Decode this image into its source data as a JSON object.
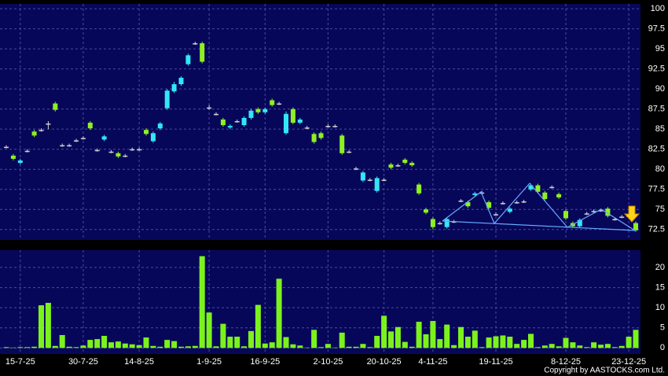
{
  "chart_data": [
    {
      "type": "candlestick",
      "categories": [
        null,
        null,
        "15-7-25",
        null,
        null,
        null,
        null,
        null,
        null,
        null,
        null,
        "30-7-25",
        null,
        null,
        null,
        null,
        null,
        null,
        null,
        "14-8-25",
        null,
        null,
        null,
        null,
        null,
        null,
        null,
        null,
        null,
        "1-9-25",
        null,
        null,
        null,
        null,
        null,
        null,
        null,
        "16-9-25",
        null,
        null,
        null,
        null,
        null,
        null,
        null,
        null,
        "2-10-25",
        null,
        null,
        null,
        null,
        null,
        null,
        null,
        "20-10-25",
        null,
        null,
        null,
        null,
        null,
        null,
        "4-11-25",
        null,
        null,
        null,
        null,
        null,
        null,
        null,
        null,
        "19-11-25",
        null,
        null,
        null,
        null,
        null,
        null,
        null,
        null,
        null,
        "8-12-25",
        null,
        null,
        null,
        null,
        null,
        null,
        null,
        null,
        "23-12-25",
        null
      ],
      "open": [
        82.8,
        81.7,
        80.8,
        82.3,
        84.7,
        84.9,
        85.7,
        88.2,
        83.0,
        83.0,
        83.6,
        83.9,
        85.8,
        82.4,
        83.7,
        82.2,
        82.0,
        81.7,
        82.5,
        82.5,
        84.9,
        83.5,
        85.1,
        87.6,
        89.7,
        90.6,
        93.1,
        95.7,
        95.7,
        87.7,
        86.9,
        86.2,
        85.2,
        86.0,
        85.5,
        86.4,
        87.5,
        87.1,
        88.6,
        88.2,
        84.5,
        87.5,
        85.8,
        85.2,
        84.4,
        84.5,
        85.4,
        85.4,
        84.2,
        82.2,
        80.1,
        78.6,
        78.7,
        77.3,
        78.7,
        80.6,
        80.5,
        81.2,
        80.8,
        78.1,
        75.0,
        73.8,
        73.3,
        72.8,
        73.5,
        76.1,
        75.9,
        76.8,
        77.1,
        75.9,
        74.4,
        75.8,
        74.7,
        75.9,
        76.0,
        77.5,
        78.0,
        77.1,
        77.8,
        76.9,
        74.8,
        73.3,
        72.9,
        74.5,
        74.8,
        74.9,
        75.1,
        73.8,
        74.1,
        74.2,
        73.3
      ],
      "high": [
        83.0,
        81.9,
        81.3,
        82.5,
        84.9,
        85.1,
        86.0,
        88.4,
        83.2,
        83.2,
        83.8,
        84.1,
        86.0,
        82.6,
        84.3,
        82.4,
        82.2,
        81.9,
        82.7,
        82.7,
        85.1,
        84.7,
        85.9,
        90.0,
        90.9,
        91.6,
        94.4,
        95.9,
        95.9,
        88.0,
        87.1,
        86.4,
        85.6,
        86.2,
        86.6,
        87.5,
        87.7,
        87.7,
        88.8,
        88.4,
        87.2,
        87.7,
        86.4,
        85.4,
        84.6,
        84.7,
        85.6,
        85.6,
        84.4,
        82.4,
        80.3,
        79.8,
        78.9,
        79.1,
        78.9,
        80.8,
        80.7,
        81.4,
        81.0,
        78.3,
        75.2,
        74.0,
        73.5,
        74.0,
        73.7,
        76.3,
        76.1,
        77.2,
        77.3,
        76.1,
        74.6,
        76.0,
        75.3,
        76.1,
        76.2,
        78.2,
        78.2,
        77.3,
        78.0,
        77.1,
        75.0,
        73.5,
        73.9,
        74.7,
        75.0,
        75.1,
        75.3,
        74.0,
        74.3,
        74.4,
        73.5
      ],
      "low": [
        82.6,
        81.1,
        80.6,
        82.1,
        84.0,
        84.7,
        85.0,
        87.2,
        82.8,
        82.8,
        83.4,
        83.7,
        84.9,
        82.2,
        83.5,
        82.0,
        81.4,
        81.5,
        82.3,
        82.3,
        84.2,
        83.3,
        84.9,
        87.4,
        89.5,
        90.4,
        92.9,
        95.5,
        93.2,
        87.4,
        86.7,
        85.3,
        85.0,
        85.8,
        85.3,
        86.2,
        86.9,
        86.9,
        87.8,
        88.0,
        84.3,
        85.6,
        85.6,
        85.0,
        83.2,
        83.7,
        85.2,
        85.2,
        81.8,
        82.0,
        79.9,
        78.4,
        78.5,
        77.1,
        78.5,
        80.0,
        80.3,
        80.6,
        80.3,
        76.8,
        74.4,
        72.5,
        73.1,
        72.6,
        73.3,
        75.9,
        75.2,
        76.6,
        76.9,
        75.0,
        74.2,
        75.6,
        74.5,
        75.7,
        75.8,
        77.3,
        77.0,
        76.1,
        77.6,
        76.3,
        73.7,
        72.7,
        72.7,
        74.3,
        74.6,
        74.7,
        74.0,
        73.6,
        73.9,
        74.0,
        72.2
      ],
      "close": [
        82.8,
        81.3,
        81.1,
        82.3,
        84.2,
        84.9,
        85.7,
        87.4,
        83.0,
        83.0,
        83.6,
        83.9,
        85.1,
        82.4,
        84.1,
        82.2,
        81.6,
        81.7,
        82.5,
        82.5,
        84.4,
        84.5,
        85.7,
        89.8,
        90.6,
        91.4,
        94.2,
        95.7,
        93.4,
        87.7,
        86.9,
        85.5,
        85.4,
        86.0,
        86.4,
        87.3,
        87.1,
        87.5,
        88.0,
        88.2,
        86.9,
        85.8,
        86.2,
        85.2,
        83.4,
        83.9,
        85.4,
        85.4,
        82.0,
        82.2,
        80.1,
        79.6,
        78.7,
        78.9,
        78.7,
        80.2,
        80.5,
        80.8,
        80.5,
        77.0,
        74.6,
        72.8,
        73.3,
        73.8,
        73.5,
        76.1,
        75.4,
        77.0,
        77.1,
        75.2,
        74.4,
        75.8,
        75.1,
        75.9,
        76.0,
        78.0,
        77.2,
        76.3,
        77.8,
        76.5,
        73.9,
        72.9,
        73.7,
        74.5,
        74.8,
        74.9,
        74.2,
        73.8,
        74.1,
        74.2,
        72.4
      ],
      "colors": {
        "up": "#33e6f5",
        "down": "#8ef022",
        "flat": "#d0d0d0"
      },
      "ylim": [
        71.2,
        100.6
      ],
      "yticks": [
        72.5,
        75,
        77.5,
        80,
        82.5,
        85,
        87.5,
        90,
        92.5,
        95,
        97.5,
        100
      ],
      "grid": true
    },
    {
      "type": "bar",
      "values": [
        0.2,
        0.1,
        0.2,
        0.2,
        0.3,
        10.6,
        11.2,
        0.5,
        3.2,
        0.3,
        0.2,
        0.6,
        2.0,
        2.2,
        3.0,
        1.4,
        1.6,
        1.1,
        0.9,
        0.7,
        2.6,
        0.5,
        0.3,
        2.0,
        1.7,
        0.3,
        0.4,
        0.5,
        22.8,
        8.8,
        0.4,
        6.0,
        2.8,
        2.8,
        0.4,
        4.2,
        10.7,
        1.1,
        1.4,
        17.2,
        2.7,
        0.9,
        0.6,
        0.1,
        4.5,
        0.2,
        1.0,
        0.1,
        3.8,
        0.3,
        0.3,
        1.0,
        0.2,
        3.0,
        8.0,
        4.1,
        5.2,
        1.5,
        0.3,
        6.5,
        3.4,
        6.7,
        2.2,
        5.8,
        0.7,
        5.2,
        2.8,
        4.3,
        0.2,
        2.6,
        2.9,
        3.1,
        2.8,
        1.0,
        2.0,
        3.5,
        0.2,
        0.6,
        1.0,
        0.4,
        2.5,
        1.4,
        0.6,
        0.2,
        1.4,
        0.8,
        1.0,
        0.2,
        0.5,
        2.8,
        4.5
      ],
      "color": "#7cf21c",
      "ylim": [
        -1.5,
        24.3
      ],
      "yticks": [
        0,
        5,
        10,
        15,
        20
      ],
      "grid": true
    }
  ],
  "copyright": "Copyright by AASTOCKS.com Ltd."
}
